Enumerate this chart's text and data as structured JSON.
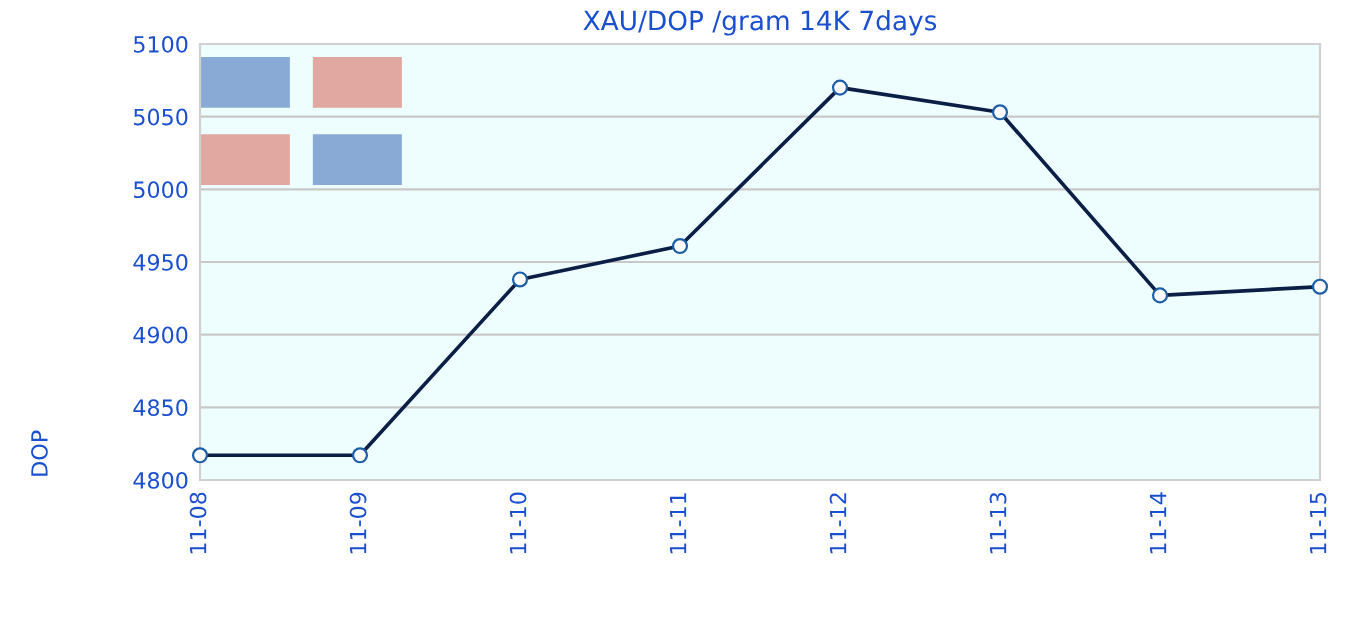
{
  "chart_data": {
    "type": "line",
    "title": "XAU/DOP /gram 14K 7days",
    "ylabel": "DOP",
    "categories": [
      "11-08",
      "11-09",
      "11-10",
      "11-11",
      "11-12",
      "11-13",
      "11-14",
      "11-15"
    ],
    "series": [
      {
        "color": "#0a1e46",
        "values": [
          4817,
          4817,
          4938,
          4961,
          5070,
          5053,
          4927,
          4933
        ]
      }
    ],
    "ylim": [
      4800,
      5100
    ],
    "yticks": [
      4800,
      4850,
      4900,
      4950,
      5000,
      5050,
      5100
    ],
    "grid": "y",
    "marker": "circle",
    "line_style": "solid"
  }
}
